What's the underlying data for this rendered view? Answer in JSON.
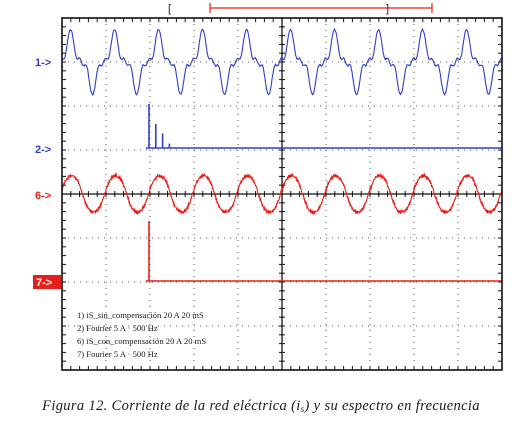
{
  "chart_data": {
    "type": "line",
    "grid": true,
    "trigger_marker": {
      "open": "[",
      "close": "]"
    },
    "channels": [
      {
        "id": 1,
        "marker": "1->",
        "kind": "waveform",
        "color": "#2e3fc4",
        "cycles": 10,
        "shape": "distorted-square"
      },
      {
        "id": 2,
        "marker": "2->",
        "kind": "spectrum",
        "color": "#2e3fc4",
        "peaks": [
          {
            "harmonic": 1,
            "amplitude": 1.0
          },
          {
            "harmonic": 3,
            "amplitude": 0.55
          },
          {
            "harmonic": 5,
            "amplitude": 0.33
          },
          {
            "harmonic": 7,
            "amplitude": 0.1
          }
        ]
      },
      {
        "id": 6,
        "marker": "6->",
        "kind": "waveform",
        "color": "#e5201b",
        "cycles": 10,
        "shape": "sinusoid-with-ripple"
      },
      {
        "id": 7,
        "marker": "7->",
        "kind": "spectrum",
        "color": "#e5201b",
        "peaks": [
          {
            "harmonic": 1,
            "amplitude": 1.0
          }
        ]
      }
    ],
    "legend": [
      "1) iS_sin_compensación  20 A    20 mS",
      "2) Fourier  5 A · 500 Hz",
      "6) iS_con_compensación  20 A    20 mS",
      "7) Fourier  5 A · 500 Hz"
    ]
  },
  "caption": {
    "before": "Figura 12. Corriente de la red eléctrica (i",
    "sub": "s",
    "after": ") y su espectro en frecuencia"
  }
}
